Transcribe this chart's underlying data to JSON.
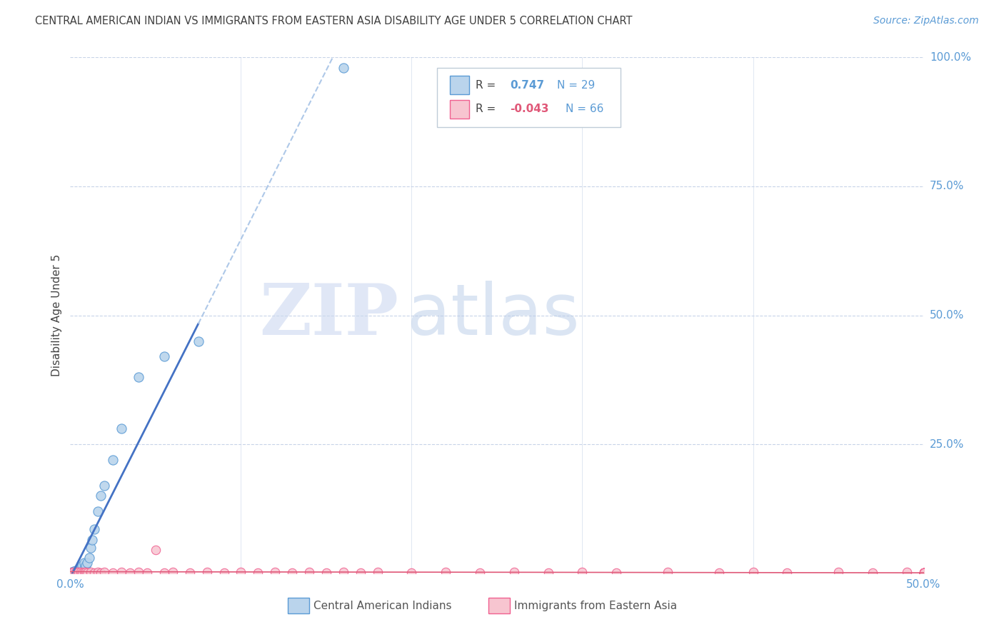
{
  "title": "CENTRAL AMERICAN INDIAN VS IMMIGRANTS FROM EASTERN ASIA DISABILITY AGE UNDER 5 CORRELATION CHART",
  "source": "Source: ZipAtlas.com",
  "ylabel": "Disability Age Under 5",
  "xlim": [
    0.0,
    0.5
  ],
  "ylim": [
    0.0,
    1.0
  ],
  "blue_R": 0.747,
  "blue_N": 29,
  "pink_R": -0.043,
  "pink_N": 66,
  "blue_fill": "#bad4ec",
  "pink_fill": "#f7c5d0",
  "blue_edge": "#5b9bd5",
  "pink_edge": "#f06090",
  "blue_line": "#4472c4",
  "pink_line": "#e05878",
  "dashed_color": "#aec8e8",
  "background_color": "#ffffff",
  "grid_color": "#c8d4e8",
  "title_color": "#404040",
  "right_label_color": "#5b9bd5",
  "source_color": "#5b9bd5",
  "blue_scatter_x": [
    0.001,
    0.002,
    0.002,
    0.003,
    0.003,
    0.004,
    0.005,
    0.005,
    0.006,
    0.006,
    0.007,
    0.007,
    0.008,
    0.008,
    0.009,
    0.01,
    0.011,
    0.012,
    0.013,
    0.014,
    0.016,
    0.018,
    0.02,
    0.025,
    0.03,
    0.04,
    0.055,
    0.075,
    0.16
  ],
  "blue_scatter_y": [
    0.002,
    0.003,
    0.004,
    0.003,
    0.005,
    0.004,
    0.005,
    0.008,
    0.006,
    0.01,
    0.008,
    0.015,
    0.01,
    0.02,
    0.015,
    0.02,
    0.03,
    0.05,
    0.065,
    0.085,
    0.12,
    0.15,
    0.17,
    0.22,
    0.28,
    0.38,
    0.42,
    0.45,
    0.98
  ],
  "pink_scatter_x": [
    0.001,
    0.002,
    0.003,
    0.004,
    0.005,
    0.006,
    0.007,
    0.008,
    0.009,
    0.01,
    0.012,
    0.014,
    0.016,
    0.018,
    0.02,
    0.025,
    0.03,
    0.035,
    0.04,
    0.045,
    0.05,
    0.055,
    0.06,
    0.07,
    0.08,
    0.09,
    0.1,
    0.11,
    0.12,
    0.13,
    0.14,
    0.15,
    0.16,
    0.17,
    0.18,
    0.2,
    0.22,
    0.24,
    0.26,
    0.28,
    0.3,
    0.32,
    0.35,
    0.38,
    0.4,
    0.42,
    0.45,
    0.47,
    0.49,
    0.5,
    0.5,
    0.5,
    0.5,
    0.5,
    0.5,
    0.5,
    0.5,
    0.5,
    0.5,
    0.5,
    0.5,
    0.5,
    0.5,
    0.5,
    0.5,
    0.5
  ],
  "pink_scatter_y": [
    0.003,
    0.002,
    0.003,
    0.002,
    0.003,
    0.002,
    0.001,
    0.002,
    0.002,
    0.001,
    0.002,
    0.001,
    0.002,
    0.001,
    0.002,
    0.001,
    0.002,
    0.001,
    0.002,
    0.001,
    0.045,
    0.001,
    0.002,
    0.001,
    0.002,
    0.001,
    0.002,
    0.001,
    0.002,
    0.001,
    0.002,
    0.001,
    0.002,
    0.001,
    0.002,
    0.001,
    0.002,
    0.001,
    0.002,
    0.001,
    0.002,
    0.001,
    0.002,
    0.001,
    0.002,
    0.001,
    0.002,
    0.001,
    0.002,
    0.001,
    0.001,
    0.001,
    0.001,
    0.001,
    0.001,
    0.001,
    0.001,
    0.001,
    0.001,
    0.001,
    0.001,
    0.001,
    0.001,
    0.001,
    0.001,
    0.001
  ],
  "watermark_left": "ZIP",
  "watermark_right": "atlas",
  "legend_label1": "R =",
  "legend_val1": "0.747",
  "legend_n1": "N = 29",
  "legend_label2": "R =",
  "legend_val2": "-0.043",
  "legend_n2": "N = 66",
  "bottom_label1": "Central American Indians",
  "bottom_label2": "Immigrants from Eastern Asia"
}
